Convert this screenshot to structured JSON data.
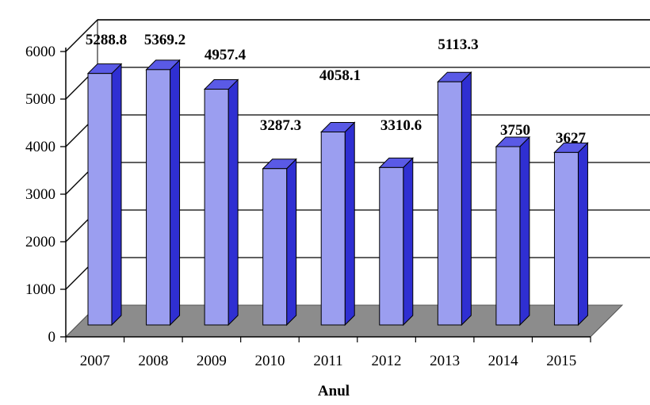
{
  "chart_data": {
    "type": "bar",
    "style": "3d-column",
    "title": "",
    "xlabel": "Anul",
    "ylabel": "",
    "categories": [
      "2007",
      "2008",
      "2009",
      "2010",
      "2011",
      "2012",
      "2013",
      "2014",
      "2015"
    ],
    "values": [
      5288.8,
      5369.2,
      4957.4,
      3287.3,
      4058.1,
      3310.6,
      5113.3,
      3750,
      3627
    ],
    "data_labels": [
      "5288.8",
      "5369.2",
      "4957.4",
      "3287.3",
      "4058.1",
      "3310.6",
      "5113.3",
      "3750",
      "3627"
    ],
    "ylim": [
      0,
      6000
    ],
    "yticks": [
      0,
      1000,
      2000,
      3000,
      4000,
      5000,
      6000
    ],
    "ytick_labels": [
      "0",
      "1000",
      "2000",
      "3000",
      "4000",
      "5000",
      "6000"
    ],
    "grid": true,
    "legend": "none",
    "colors": {
      "bar_front": "#9b9ef0",
      "bar_side": "#2f2fd2",
      "bar_top": "#5a5ae6",
      "floor": "#8c8c8c",
      "wall": "#ffffff",
      "grid": "#000000"
    }
  }
}
